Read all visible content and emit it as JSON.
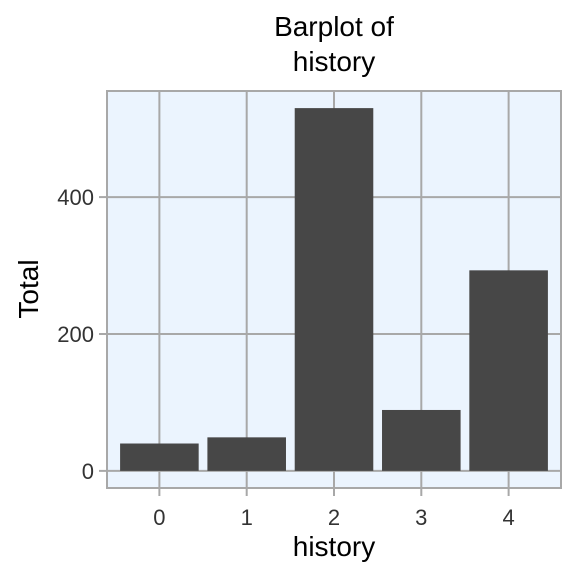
{
  "chart_data": {
    "type": "bar",
    "title": [
      "Barplot of",
      "history"
    ],
    "xlabel": "history",
    "ylabel": "Total",
    "categories": [
      "0",
      "1",
      "2",
      "3",
      "4"
    ],
    "values": [
      40,
      49,
      530,
      89,
      293
    ],
    "ylim": [
      -25,
      555
    ],
    "yticks": [
      0,
      200,
      400
    ],
    "ytick_labels": [
      "0",
      "200",
      "400"
    ],
    "grid": true,
    "legend": "none",
    "colors": {
      "bar": "#474747",
      "panel": "#ebf4fe",
      "grid": "#a8a8a8",
      "text": "#000000",
      "tick_text": "#333333"
    }
  }
}
